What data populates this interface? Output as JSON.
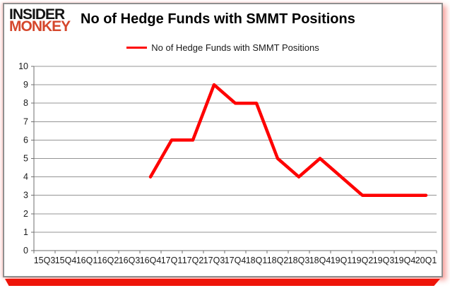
{
  "logo": {
    "line1": "INSIDER",
    "line2": "MONKEY"
  },
  "header": {
    "title": "No of Hedge Funds with SMMT Positions"
  },
  "legend": {
    "label": "No of Hedge Funds with SMMT Positions"
  },
  "colors": {
    "line": "#fe0000",
    "logo_black": "#141414",
    "logo_red": "#d5472c",
    "bottom_shadow_red": "#ee1409",
    "grid": "#949494",
    "axis": "#6f6f6f",
    "tick_text": "#1a1a1a"
  },
  "chart_data": {
    "type": "line",
    "title": "No of Hedge Funds with SMMT Positions",
    "categories": [
      "15Q3",
      "15Q4",
      "16Q1",
      "16Q2",
      "16Q3",
      "16Q4",
      "17Q1",
      "17Q2",
      "17Q3",
      "17Q4",
      "18Q1",
      "18Q2",
      "18Q3",
      "18Q4",
      "19Q1",
      "19Q2",
      "19Q3",
      "19Q4",
      "20Q1"
    ],
    "series": [
      {
        "name": "No of Hedge Funds with SMMT Positions",
        "color": "#fe0000",
        "values": [
          null,
          null,
          null,
          null,
          null,
          4,
          6,
          6,
          9,
          8,
          8,
          5,
          4,
          5,
          4,
          3,
          3,
          3,
          3
        ]
      }
    ],
    "xlabel": "",
    "ylabel": "",
    "ylim": [
      0,
      10
    ],
    "ytick_step": 1,
    "grid": true,
    "legend_position": "top-center"
  }
}
